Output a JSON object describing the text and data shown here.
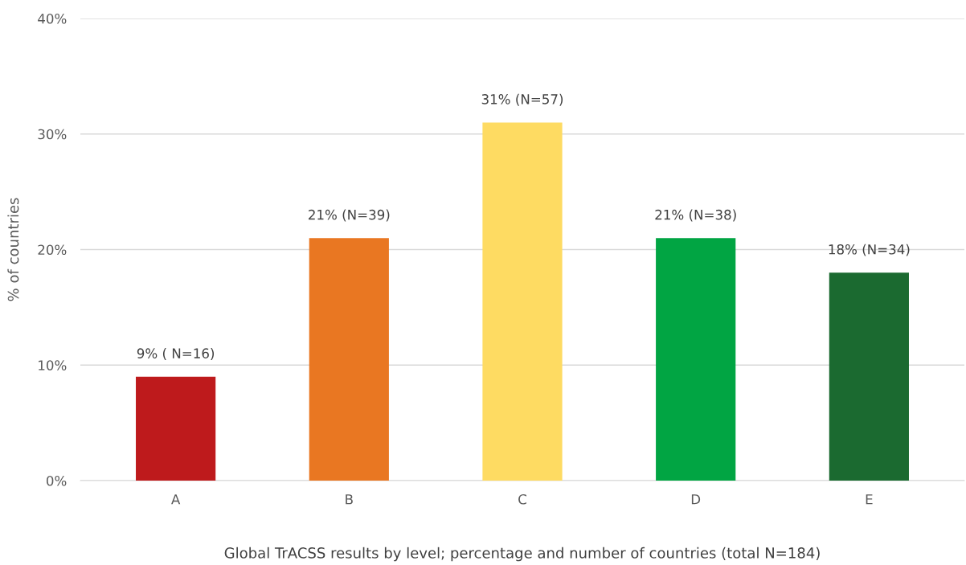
{
  "chart_data": {
    "type": "bar",
    "categories": [
      "A",
      "B",
      "C",
      "D",
      "E"
    ],
    "values": [
      9,
      21,
      31,
      21,
      18
    ],
    "colors": [
      "#be1a1c",
      "#e97722",
      "#fedb62",
      "#01a543",
      "#1b6a30"
    ],
    "value_labels": [
      "9% ( N=16)",
      "21% (N=39)",
      "31% (N=57)",
      "21% (N=38)",
      "18% (N=34)"
    ],
    "ylabel": "% of countries",
    "xlabel": "Global TrACSS results by level; percentage and number of countries (total N=184)",
    "ylim": [
      0,
      40
    ],
    "yticks": [
      {
        "value": 0,
        "label": "0%"
      },
      {
        "value": 10,
        "label": "10%"
      },
      {
        "value": 20,
        "label": "20%"
      },
      {
        "value": 30,
        "label": "30%"
      },
      {
        "value": 40,
        "label": "40%"
      }
    ],
    "grid": "y",
    "legend": false
  }
}
